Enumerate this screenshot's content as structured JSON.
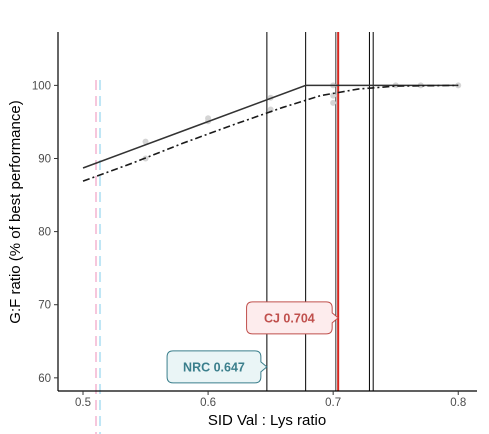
{
  "chart_data": {
    "type": "scatter",
    "xlabel": "SID Val : Lys ratio",
    "ylabel": "G:F ratio (% of best performance)",
    "xlim": [
      0.48,
      0.815
    ],
    "ylim": [
      58.2,
      107.3
    ],
    "x_ticks": [
      0.5,
      0.6,
      0.7,
      0.8
    ],
    "x_tick_labels": [
      "0.5",
      "0.6",
      "0.7",
      "0.8"
    ],
    "y_ticks": [
      60,
      70,
      80,
      90,
      100
    ],
    "y_tick_labels": [
      "60",
      "70",
      "80",
      "90",
      "100"
    ],
    "grid": false,
    "points": [
      {
        "x": 0.55,
        "y": 92.3
      },
      {
        "x": 0.55,
        "y": 90.0
      },
      {
        "x": 0.6,
        "y": 95.5
      },
      {
        "x": 0.6,
        "y": 95.1
      },
      {
        "x": 0.65,
        "y": 98.3
      },
      {
        "x": 0.65,
        "y": 96.7
      },
      {
        "x": 0.7,
        "y": 100.0
      },
      {
        "x": 0.7,
        "y": 98.6
      },
      {
        "x": 0.7,
        "y": 97.6
      },
      {
        "x": 0.75,
        "y": 100.0
      },
      {
        "x": 0.77,
        "y": 100.0
      },
      {
        "x": 0.8,
        "y": 100.0
      }
    ],
    "broken_line": [
      [
        0.5,
        88.7
      ],
      [
        0.678,
        100.0
      ],
      [
        0.8,
        100.0
      ]
    ],
    "curvilinear": [
      [
        0.5,
        86.9
      ],
      [
        0.54,
        89.4
      ],
      [
        0.58,
        92.1
      ],
      [
        0.62,
        94.6
      ],
      [
        0.66,
        97.0
      ],
      [
        0.69,
        98.6
      ],
      [
        0.72,
        99.5
      ],
      [
        0.75,
        99.9
      ],
      [
        0.8,
        100.0
      ]
    ],
    "vlines_black": [
      0.647,
      0.678,
      0.729,
      0.732
    ],
    "vline_red": 0.704,
    "vline_dashed": 0.512,
    "annotations": [
      {
        "text": "CJ 0.704",
        "x": 0.704,
        "y": 68.2,
        "color": "#c0504d",
        "fill": "#fdeced",
        "side": "left"
      },
      {
        "text": "NRC 0.647",
        "x": 0.647,
        "y": 61.5,
        "color": "#3b7f8c",
        "fill": "#eaf5f6",
        "side": "left"
      }
    ],
    "colors": {
      "points": "#d3d3d3",
      "broken_line": "#333333",
      "curvilinear": "#1a1a1a",
      "vline_black": "#000000",
      "vline_red": "#d7261e",
      "vline_dashed_a": "#f6c6dc",
      "vline_dashed_b": "#bfe6f5"
    }
  }
}
